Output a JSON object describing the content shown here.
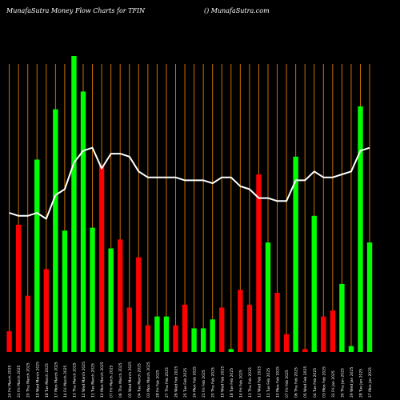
{
  "header": {
    "left": "MunafaSutra  Money Flow  Charts for TFIN",
    "right": "() MunafaSutra.com"
  },
  "chart_data": {
    "type": "bar",
    "title": "MunafaSutra  Money Flow  Charts for TFIN",
    "categories": [
      "24 Fri March 2025",
      "21 Fri March 2025",
      "20 Thu March 2025",
      "19 Wed March 2025",
      "18 Tue March 2025",
      "17 Mon March 2025",
      "14 Fri March 2025",
      "13 Thu March 2025",
      "12 Wed March 2025",
      "11 Tue March 2025",
      "10 Mon March 2025",
      "07 Fri March 2025",
      "06 Thu March 2025",
      "05 Wed March 2025",
      "04 Tue March 2025",
      "03 Mon March 2025",
      "28 Fri Feb 2025",
      "27 Thu Feb 2025",
      "26 Wed Feb 2025",
      "25 Tue Feb 2025",
      "24 Mon Feb 2025",
      "21 Fri Feb 2025",
      "20 Thu Feb 2025",
      "19 Wed Feb 2025",
      "18 Tue Feb 2025",
      "14 Fri Feb 2025",
      "13 Thu Feb 2025",
      "12 Wed Feb 2025",
      "11 Tue Feb 2025",
      "10 Mon Feb 2025",
      "07 Fri Feb 2025",
      "06 Thu Feb 2025",
      "05 Wed Feb 2025",
      "04 Tue Feb 2025",
      "03 Mon Feb 2025",
      "31 Fri Jan 2025",
      "30 Thu Jan 2025",
      "29 Wed Jan 2025",
      "28 Tue Jan 2025",
      "27 Mon Jan 2025"
    ],
    "colors": [
      "red",
      "red",
      "red",
      "green",
      "red",
      "green",
      "green",
      "green",
      "green",
      "green",
      "red",
      "green",
      "red",
      "red",
      "red",
      "red",
      "green",
      "green",
      "red",
      "red",
      "green",
      "green",
      "green",
      "red",
      "green",
      "red",
      "red",
      "red",
      "green",
      "red",
      "red",
      "green",
      "red",
      "green",
      "red",
      "red",
      "green",
      "green",
      "green",
      "green"
    ],
    "values": [
      7,
      43,
      19,
      65,
      28,
      82,
      41,
      100,
      88,
      42,
      63,
      35,
      38,
      15,
      32,
      9,
      12,
      12,
      9,
      16,
      8,
      8,
      11,
      15,
      1,
      21,
      16,
      60,
      37,
      20,
      6,
      66,
      1,
      46,
      12,
      14,
      23,
      2,
      83,
      37
    ],
    "line": [
      47,
      46,
      46,
      47,
      45,
      53,
      55,
      64,
      68,
      69,
      62,
      67,
      67,
      66,
      61,
      59,
      59,
      59,
      59,
      58,
      58,
      58,
      57,
      59,
      59,
      56,
      55,
      52,
      52,
      51,
      51,
      58,
      58,
      61,
      59,
      59,
      60,
      61,
      68,
      69
    ],
    "colors_map": {
      "green": "#00ff00",
      "red": "#ff0000",
      "grid": "#c87000",
      "line": "#ffffff"
    },
    "ylim": [
      0,
      100
    ],
    "grid": "vertical"
  }
}
